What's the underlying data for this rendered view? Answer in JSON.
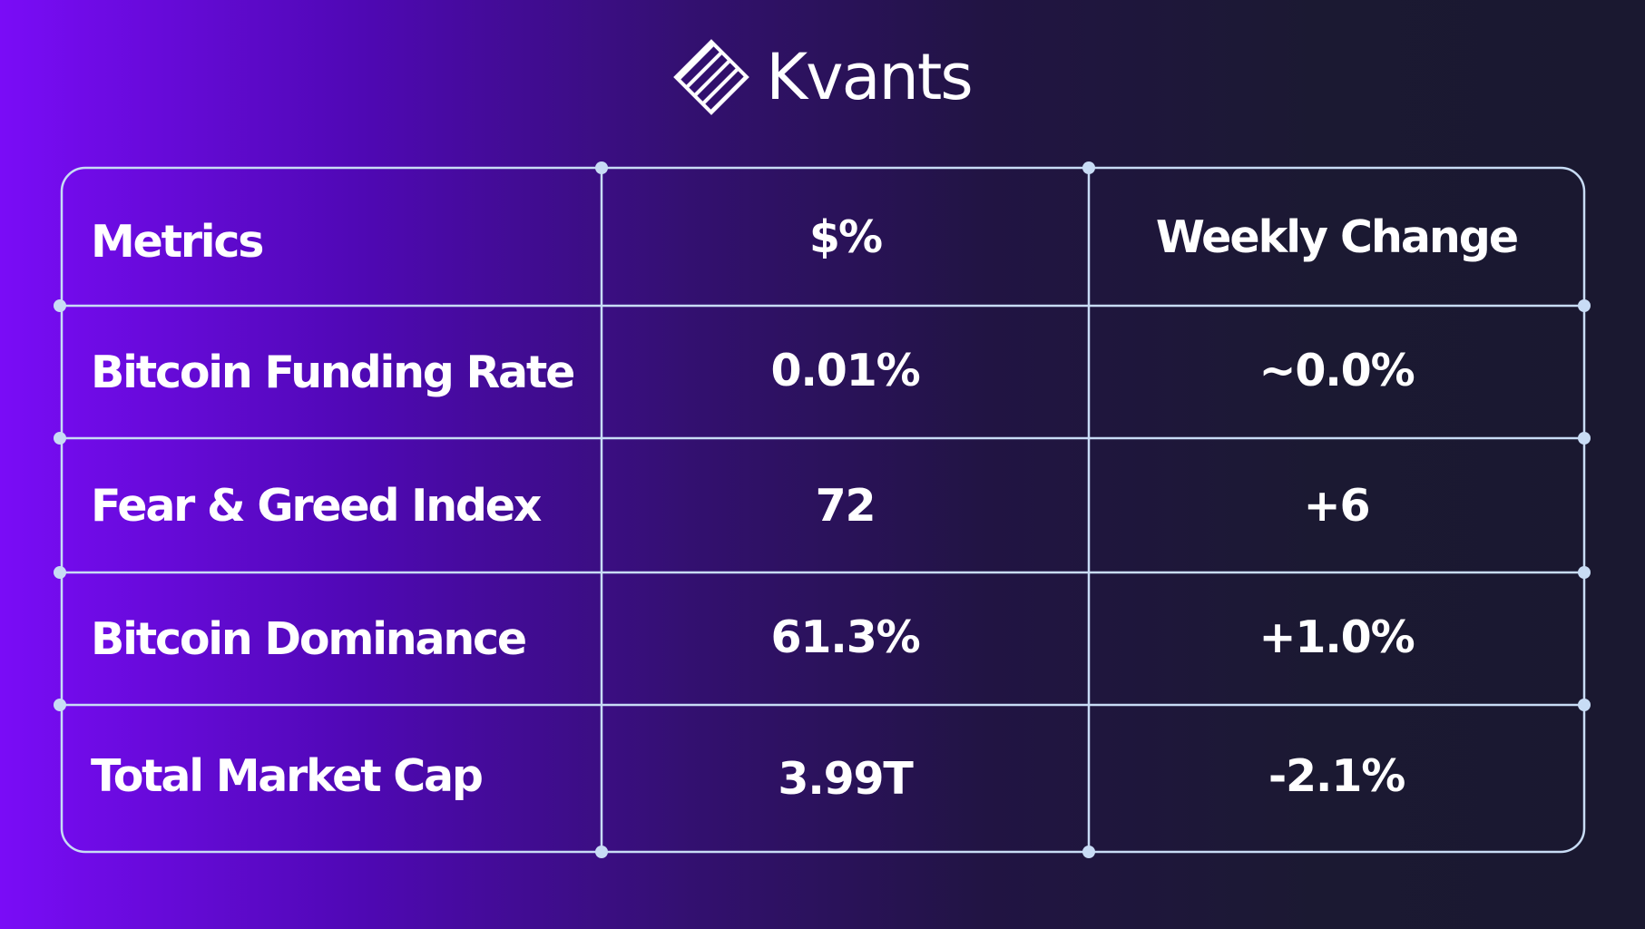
{
  "brand": {
    "name": "Kvants",
    "logo_icon": "striped-diamond-icon"
  },
  "colors": {
    "gradient_left": "#7a0cf7",
    "gradient_right": "#1a1830",
    "grid_line": "#c8dcf5",
    "text": "#ffffff"
  },
  "table": {
    "headers": [
      "Metrics",
      "$%",
      "Weekly Change"
    ],
    "rows": [
      {
        "metric": "Bitcoin Funding Rate",
        "value": "0.01%",
        "change": "~0.0%"
      },
      {
        "metric": "Fear & Greed Index",
        "value": "72",
        "change": "+6"
      },
      {
        "metric": "Bitcoin Dominance",
        "value": "61.3%",
        "change": "+1.0%"
      },
      {
        "metric": "Total Market Cap",
        "value": "3.99T",
        "change": "-2.1%"
      }
    ]
  }
}
